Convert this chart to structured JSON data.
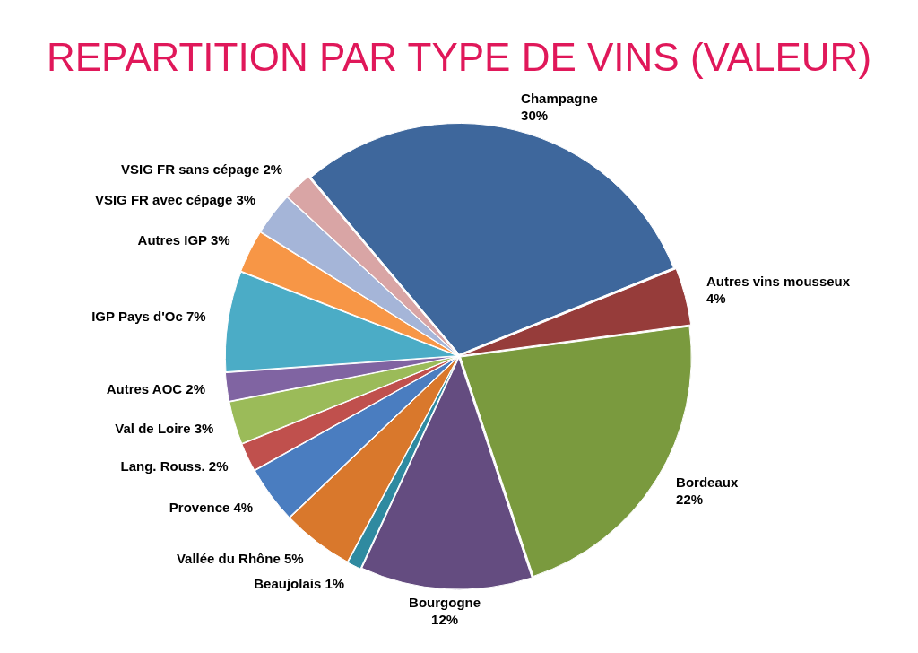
{
  "chart_data": {
    "type": "pie",
    "title": "REPARTITION PAR TYPE DE VINS (VALEUR)",
    "categories": [
      "Champagne",
      "Autres vins mousseux",
      "Bordeaux",
      "Bourgogne",
      "Beaujolais",
      "Vallée du Rhône",
      "Provence",
      "Lang. Rouss.",
      "Val de Loire",
      "Autres AOC",
      "IGP Pays d'Oc",
      "Autres IGP",
      "VSIG FR avec cépage",
      "VSIG FR sans cépage"
    ],
    "values": [
      30,
      4,
      22,
      12,
      1,
      5,
      4,
      2,
      3,
      2,
      7,
      3,
      3,
      2
    ],
    "value_labels": [
      "30%",
      "4%",
      "22%",
      "12%",
      "1%",
      "5%",
      "4%",
      "2%",
      "3%",
      "2%",
      "7%",
      "3%",
      "3%",
      "2%"
    ],
    "colors": [
      "#3e679c",
      "#963c3a",
      "#7a9a3e",
      "#644c80",
      "#2f8aa0",
      "#d9782c",
      "#4a7dc0",
      "#c0504d",
      "#9bbb59",
      "#8064a2",
      "#4bacc6",
      "#f79646",
      "#a5b5d8",
      "#d9a5a5"
    ],
    "legend": false
  }
}
